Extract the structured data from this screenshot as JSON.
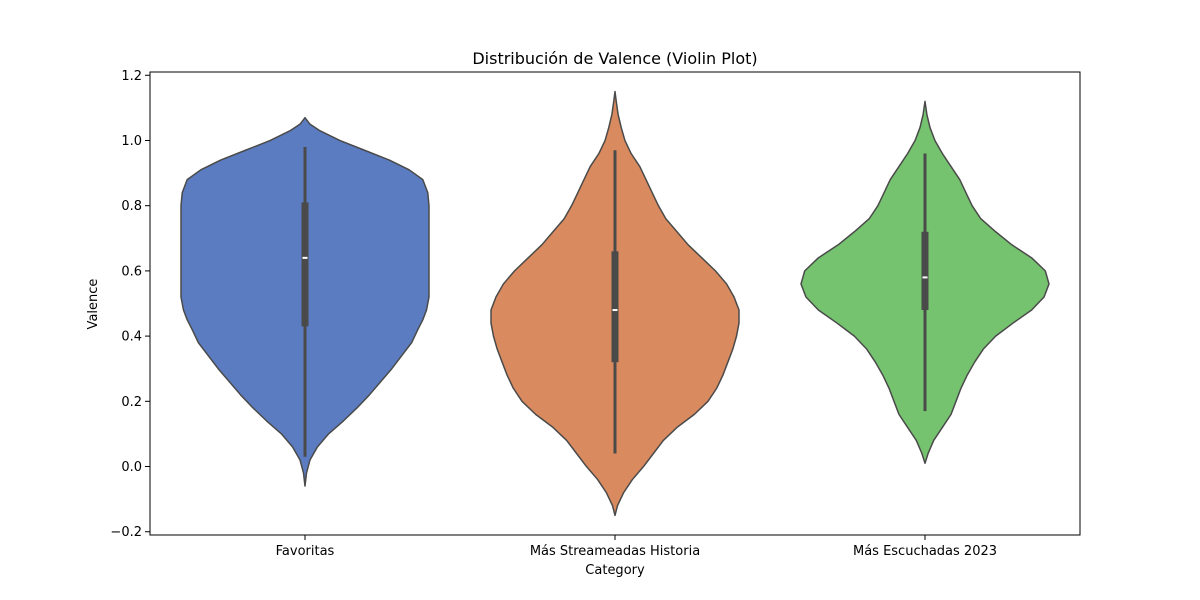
{
  "chart_data": {
    "type": "violin",
    "title": "Distribución de Valence (Violin Plot)",
    "xlabel": "Category",
    "ylabel": "Valence",
    "ylim": [
      -0.21,
      1.21
    ],
    "yticks": [
      -0.2,
      0.0,
      0.2,
      0.4,
      0.6,
      0.8,
      1.0,
      1.2
    ],
    "ytick_labels": [
      "−0.2",
      "0.0",
      "0.2",
      "0.4",
      "0.6",
      "0.8",
      "1.0",
      "1.2"
    ],
    "grid": false,
    "legend": "none",
    "categories": [
      "Favoritas",
      "Más Streameadas Historia",
      "Más Escuchadas 2023"
    ],
    "series": [
      {
        "category": "Favoritas",
        "color": "#5b7cc0",
        "whisker": [
          0.03,
          0.98
        ],
        "q1": 0.43,
        "median": 0.64,
        "q3": 0.81,
        "density": [
          [
            -0.06,
            0.0
          ],
          [
            -0.02,
            0.012
          ],
          [
            0.02,
            0.04
          ],
          [
            0.06,
            0.1
          ],
          [
            0.1,
            0.19
          ],
          [
            0.14,
            0.31
          ],
          [
            0.18,
            0.42
          ],
          [
            0.22,
            0.52
          ],
          [
            0.26,
            0.61
          ],
          [
            0.3,
            0.7
          ],
          [
            0.34,
            0.78
          ],
          [
            0.38,
            0.86
          ],
          [
            0.42,
            0.91
          ],
          [
            0.45,
            0.95
          ],
          [
            0.48,
            0.98
          ],
          [
            0.52,
            1.0
          ],
          [
            0.56,
            1.0
          ],
          [
            0.6,
            1.0
          ],
          [
            0.64,
            1.0
          ],
          [
            0.68,
            1.0
          ],
          [
            0.72,
            1.0
          ],
          [
            0.76,
            1.0
          ],
          [
            0.8,
            1.0
          ],
          [
            0.84,
            0.99
          ],
          [
            0.88,
            0.95
          ],
          [
            0.91,
            0.84
          ],
          [
            0.94,
            0.68
          ],
          [
            0.97,
            0.48
          ],
          [
            1.0,
            0.28
          ],
          [
            1.03,
            0.12
          ],
          [
            1.05,
            0.04
          ],
          [
            1.07,
            0.0
          ]
        ]
      },
      {
        "category": "Más Streameadas Historia",
        "color": "#d98a5e",
        "whisker": [
          0.04,
          0.97
        ],
        "q1": 0.32,
        "median": 0.48,
        "q3": 0.66,
        "density": [
          [
            -0.15,
            0.0
          ],
          [
            -0.12,
            0.02
          ],
          [
            -0.08,
            0.07
          ],
          [
            -0.04,
            0.14
          ],
          [
            0.0,
            0.23
          ],
          [
            0.04,
            0.31
          ],
          [
            0.08,
            0.39
          ],
          [
            0.12,
            0.5
          ],
          [
            0.16,
            0.64
          ],
          [
            0.2,
            0.75
          ],
          [
            0.24,
            0.82
          ],
          [
            0.28,
            0.87
          ],
          [
            0.32,
            0.91
          ],
          [
            0.36,
            0.95
          ],
          [
            0.4,
            0.98
          ],
          [
            0.44,
            1.0
          ],
          [
            0.48,
            1.0
          ],
          [
            0.52,
            0.96
          ],
          [
            0.56,
            0.9
          ],
          [
            0.6,
            0.81
          ],
          [
            0.64,
            0.7
          ],
          [
            0.68,
            0.59
          ],
          [
            0.72,
            0.5
          ],
          [
            0.76,
            0.41
          ],
          [
            0.8,
            0.35
          ],
          [
            0.84,
            0.3
          ],
          [
            0.88,
            0.25
          ],
          [
            0.92,
            0.2
          ],
          [
            0.96,
            0.13
          ],
          [
            1.0,
            0.08
          ],
          [
            1.04,
            0.05
          ],
          [
            1.08,
            0.025
          ],
          [
            1.12,
            0.01
          ],
          [
            1.15,
            0.0
          ]
        ]
      },
      {
        "category": "Más Escuchadas 2023",
        "color": "#75c36f",
        "whisker": [
          0.17,
          0.96
        ],
        "q1": 0.48,
        "median": 0.58,
        "q3": 0.72,
        "density": [
          [
            0.01,
            0.0
          ],
          [
            0.04,
            0.025
          ],
          [
            0.08,
            0.07
          ],
          [
            0.12,
            0.14
          ],
          [
            0.16,
            0.21
          ],
          [
            0.2,
            0.25
          ],
          [
            0.24,
            0.29
          ],
          [
            0.28,
            0.34
          ],
          [
            0.32,
            0.4
          ],
          [
            0.36,
            0.47
          ],
          [
            0.4,
            0.57
          ],
          [
            0.44,
            0.71
          ],
          [
            0.48,
            0.86
          ],
          [
            0.52,
            0.96
          ],
          [
            0.56,
            1.0
          ],
          [
            0.6,
            0.97
          ],
          [
            0.64,
            0.86
          ],
          [
            0.68,
            0.7
          ],
          [
            0.72,
            0.57
          ],
          [
            0.76,
            0.45
          ],
          [
            0.8,
            0.38
          ],
          [
            0.84,
            0.33
          ],
          [
            0.88,
            0.28
          ],
          [
            0.92,
            0.21
          ],
          [
            0.96,
            0.14
          ],
          [
            1.0,
            0.08
          ],
          [
            1.04,
            0.04
          ],
          [
            1.08,
            0.015
          ],
          [
            1.12,
            0.0
          ]
        ]
      }
    ]
  }
}
